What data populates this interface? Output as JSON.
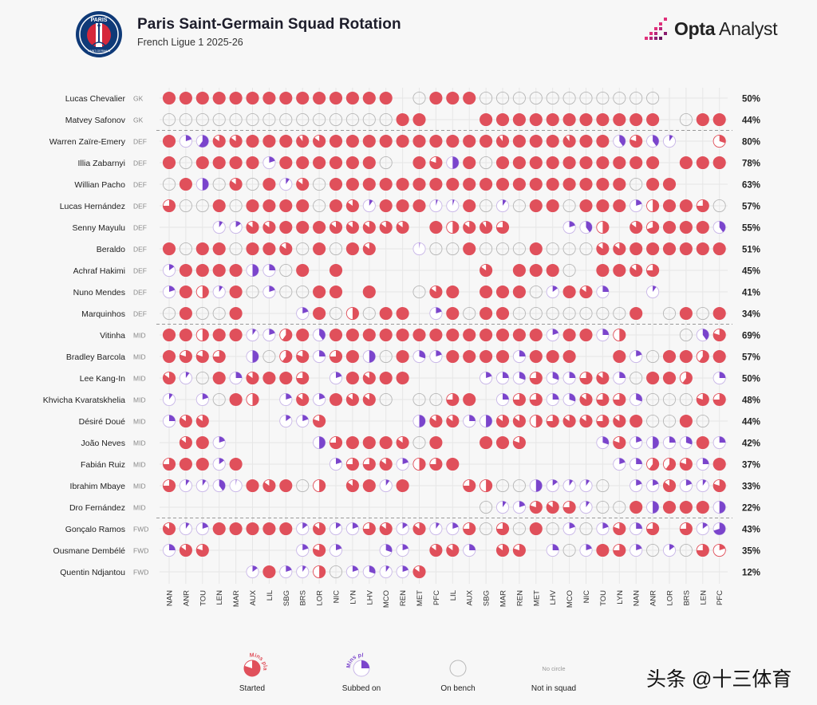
{
  "header": {
    "title": "Paris Saint-Germain Squad Rotation",
    "subtitle": "French Ligue 1 2025-26",
    "brand_bold": "Opta",
    "brand_light": " Analyst",
    "club_logo_top": "PARIS",
    "club_logo_bottom": "SAINT-GERMAIN"
  },
  "watermark": "头条 @十三体育",
  "colors": {
    "started": "#e0505b",
    "subbed": "#7b45cc",
    "bench": "#b8b8b8",
    "grid": "#e6e6e6",
    "divider": "#999999"
  },
  "chart_data": {
    "type": "table",
    "title": "Paris Saint-Germain Squad Rotation",
    "subtitle": "French Ligue 1 2025-26",
    "legend": {
      "started": "Started",
      "subbed": "Subbed on",
      "bench": "On bench",
      "not_in_squad": "Not in squad",
      "no_circle": "No circle",
      "mins_played": "Mins played"
    },
    "matches": [
      "NAN",
      "ANR",
      "TOU",
      "LEN",
      "MAR",
      "AUX",
      "LIL",
      "SBG",
      "BRS",
      "LOR",
      "NIC",
      "LYN",
      "LHV",
      "MCO",
      "REN",
      "MET",
      "PFC",
      "LIL",
      "AUX",
      "SBG",
      "MAR",
      "REN",
      "MET",
      "LHV",
      "MCO",
      "NIC",
      "TOU",
      "LYN",
      "NAN",
      "ANR",
      "LOR",
      "BRS",
      "LEN",
      "PFC"
    ],
    "value_encoding": "S = started (full), Sf = started, fraction of minutes; s = subbed on; B = on bench; N = not in squad",
    "players": [
      {
        "name": "Lucas Chevalier",
        "pos": "GK",
        "pct": "50%",
        "apps": [
          "S",
          "S",
          "S",
          "S",
          "S",
          "S",
          "S",
          "S",
          "S",
          "S",
          "S",
          "S",
          "S",
          "S",
          "N",
          "B",
          "S",
          "S",
          "S",
          "B",
          "B",
          "B",
          "B",
          "B",
          "B",
          "B",
          "B",
          "B",
          "B",
          "B",
          "N",
          "N",
          "N",
          "N"
        ]
      },
      {
        "name": "Matvey Safonov",
        "pos": "GK",
        "pct": "44%",
        "apps": [
          "B",
          "B",
          "B",
          "B",
          "B",
          "B",
          "B",
          "B",
          "B",
          "B",
          "B",
          "B",
          "B",
          "B",
          "S",
          "S",
          "N",
          "N",
          "N",
          "S",
          "S",
          "S",
          "S",
          "S",
          "S",
          "S",
          "S",
          "S",
          "S",
          "S",
          "N",
          "B",
          "S",
          "S"
        ]
      },
      {
        "name": "Warren Zaïre-Emery",
        "pos": "DEF",
        "pct": "80%",
        "apps": [
          "S",
          "s0.2",
          "s0.6",
          "S0.85",
          "S0.85",
          "S",
          "S",
          "S",
          "S0.9",
          "S0.85",
          "S",
          "S",
          "S",
          "S",
          "S",
          "S",
          "S",
          "S",
          "S",
          "S",
          "S0.9",
          "S",
          "S",
          "S",
          "S0.9",
          "S",
          "S",
          "s0.4",
          "S0.8",
          "s0.4",
          "s0.1",
          "N",
          "N",
          "S0.3"
        ]
      },
      {
        "name": "Illia Zabarnyi",
        "pos": "DEF",
        "pct": "78%",
        "apps": [
          "S",
          "B",
          "S",
          "S",
          "S",
          "S",
          "s0.2",
          "S",
          "S",
          "S",
          "S",
          "S",
          "S",
          "B",
          "N",
          "S",
          "S0.8",
          "s0.5",
          "S",
          "B",
          "S",
          "S",
          "S",
          "S",
          "S",
          "S",
          "S",
          "S",
          "S",
          "S",
          "N",
          "S",
          "S",
          "S"
        ]
      },
      {
        "name": "Willian Pacho",
        "pos": "DEF",
        "pct": "63%",
        "apps": [
          "B",
          "S",
          "s0.5",
          "B",
          "S0.85",
          "B",
          "S",
          "s0.1",
          "S0.85",
          "B",
          "S",
          "S",
          "S",
          "S",
          "S",
          "S",
          "S",
          "S",
          "S",
          "S",
          "S",
          "S",
          "S",
          "S",
          "S",
          "S",
          "S",
          "S",
          "B",
          "S",
          "S",
          "N",
          "N",
          "N"
        ]
      },
      {
        "name": "Lucas Hernández",
        "pos": "DEF",
        "pct": "57%",
        "apps": [
          "S0.75",
          "B",
          "B",
          "S",
          "B",
          "S",
          "S",
          "S",
          "S",
          "B",
          "S",
          "S0.85",
          "s0.1",
          "S",
          "S",
          "S",
          "s0.05",
          "s0.05",
          "S",
          "B",
          "s0.1",
          "B",
          "S",
          "S",
          "B",
          "S",
          "S",
          "S",
          "s0.2",
          "S0.5",
          "S",
          "S",
          "S0.75",
          "B"
        ]
      },
      {
        "name": "Senny Mayulu",
        "pos": "DEF",
        "pct": "55%",
        "apps": [
          "N",
          "N",
          "N",
          "s0.1",
          "s0.15",
          "S0.85",
          "S0.85",
          "S",
          "S",
          "S",
          "S0.85",
          "S0.85",
          "S0.85",
          "S0.85",
          "S0.85",
          "N",
          "S",
          "S0.5",
          "S0.85",
          "S0.9",
          "S0.75",
          "N",
          "N",
          "N",
          "s0.2",
          "s0.4",
          "S0.5",
          "N",
          "S0.85",
          "S0.7",
          "S",
          "S",
          "S",
          "s0.4"
        ]
      },
      {
        "name": "Beraldo",
        "pos": "DEF",
        "pct": "51%",
        "apps": [
          "S",
          "B",
          "S",
          "S",
          "B",
          "S",
          "S",
          "S0.85",
          "B",
          "S",
          "B",
          "S",
          "S0.85",
          "N",
          "N",
          "s0.02",
          "B",
          "B",
          "S",
          "B",
          "B",
          "B",
          "S",
          "B",
          "B",
          "B",
          "S0.85",
          "S0.85",
          "S",
          "S",
          "S",
          "S",
          "S",
          "S"
        ]
      },
      {
        "name": "Achraf Hakimi",
        "pos": "DEF",
        "pct": "45%",
        "apps": [
          "s0.15",
          "S",
          "S",
          "S",
          "S",
          "s0.5",
          "s0.25",
          "B",
          "S",
          "N",
          "S",
          "N",
          "N",
          "N",
          "N",
          "N",
          "N",
          "N",
          "N",
          "S0.85",
          "N",
          "S",
          "S",
          "S",
          "B",
          "N",
          "S",
          "S",
          "S0.85",
          "S0.75",
          "N",
          "N",
          "N",
          "N"
        ]
      },
      {
        "name": "Nuno Mendes",
        "pos": "DEF",
        "pct": "41%",
        "apps": [
          "s0.2",
          "S",
          "S0.5",
          "s0.1",
          "S",
          "B",
          "s0.2",
          "B",
          "B",
          "S",
          "S",
          "N",
          "S",
          "N",
          "N",
          "B",
          "S0.85",
          "S",
          "N",
          "S",
          "S",
          "S",
          "B",
          "s0.15",
          "S",
          "S0.85",
          "s0.25",
          "N",
          "N",
          "s0.1",
          "N",
          "N",
          "N",
          "N"
        ]
      },
      {
        "name": "Marquinhos",
        "pos": "DEF",
        "pct": "34%",
        "apps": [
          "B",
          "S",
          "B",
          "B",
          "S",
          "N",
          "N",
          "N",
          "s0.2",
          "S",
          "B",
          "S0.5",
          "B",
          "S",
          "S",
          "N",
          "s0.2",
          "S",
          "B",
          "S",
          "S",
          "B",
          "B",
          "B",
          "B",
          "B",
          "B",
          "B",
          "S",
          "N",
          "B",
          "S",
          "B",
          "S"
        ]
      },
      {
        "name": "Vitinha",
        "pos": "MID",
        "pct": "69%",
        "apps": [
          "S",
          "S",
          "S0.5",
          "S",
          "S",
          "s0.1",
          "s0.2",
          "S0.6",
          "S",
          "s0.4",
          "S",
          "S",
          "S",
          "S",
          "S",
          "S",
          "S",
          "S",
          "S",
          "S",
          "S",
          "S",
          "S",
          "s0.2",
          "S",
          "S",
          "s0.25",
          "S0.5",
          "N",
          "N",
          "N",
          "B",
          "s0.4",
          "S0.8"
        ]
      },
      {
        "name": "Bradley Barcola",
        "pos": "MID",
        "pct": "57%",
        "apps": [
          "S",
          "S0.8",
          "S0.8",
          "S0.75",
          "N",
          "s0.5",
          "B",
          "S0.6",
          "S0.8",
          "s0.25",
          "S0.75",
          "S",
          "s0.5",
          "B",
          "S",
          "s0.3",
          "s0.2",
          "S",
          "S",
          "S",
          "S",
          "s0.25",
          "S",
          "S",
          "S",
          "N",
          "N",
          "S",
          "s0.2",
          "B",
          "S",
          "S",
          "S0.6",
          "S"
        ]
      },
      {
        "name": "Lee Kang-In",
        "pos": "MID",
        "pct": "50%",
        "apps": [
          "S0.85",
          "s0.1",
          "B",
          "S",
          "s0.25",
          "S0.85",
          "S",
          "S",
          "S0.75",
          "N",
          "s0.2",
          "S",
          "S0.85",
          "S",
          "S",
          "N",
          "N",
          "N",
          "N",
          "s0.2",
          "s0.25",
          "s0.3",
          "S0.75",
          "s0.3",
          "s0.25",
          "S0.75",
          "S0.85",
          "s0.25",
          "B",
          "S",
          "S",
          "S0.6",
          "N",
          "s0.25"
        ]
      },
      {
        "name": "Khvicha Kvaratskhelia",
        "pos": "MID",
        "pct": "48%",
        "apps": [
          "s0.1",
          "N",
          "s0.2",
          "B",
          "S",
          "S0.5",
          "N",
          "s0.2",
          "S0.85",
          "s0.2",
          "S",
          "S0.85",
          "S0.85",
          "B",
          "N",
          "B",
          "B",
          "S0.75",
          "S",
          "N",
          "s0.25",
          "S0.75",
          "S0.75",
          "s0.25",
          "s0.3",
          "S0.85",
          "S0.75",
          "S0.75",
          "s0.3",
          "B",
          "B",
          "B",
          "S0.8",
          "S0.75"
        ]
      },
      {
        "name": "Désiré Doué",
        "pos": "MID",
        "pct": "44%",
        "apps": [
          "s0.25",
          "S0.85",
          "S0.85",
          "N",
          "N",
          "N",
          "N",
          "s0.15",
          "s0.2",
          "S0.8",
          "N",
          "N",
          "N",
          "N",
          "N",
          "s0.5",
          "S0.85",
          "S0.85",
          "s0.25",
          "s0.5",
          "S0.85",
          "S0.85",
          "S0.5",
          "S0.75",
          "S0.85",
          "S0.85",
          "S0.75",
          "S0.85",
          "S",
          "B",
          "B",
          "S",
          "B",
          "N"
        ]
      },
      {
        "name": "João Neves",
        "pos": "MID",
        "pct": "42%",
        "apps": [
          "N",
          "S0.85",
          "S",
          "s0.2",
          "N",
          "N",
          "N",
          "N",
          "N",
          "s0.5",
          "S0.75",
          "S",
          "S",
          "S",
          "S0.85",
          "B",
          "S",
          "N",
          "N",
          "S",
          "S",
          "S0.8",
          "N",
          "N",
          "N",
          "N",
          "s0.3",
          "S0.8",
          "s0.2",
          "s0.5",
          "s0.25",
          "s0.3",
          "S",
          "s0.25"
        ]
      },
      {
        "name": "Fabián Ruiz",
        "pos": "MID",
        "pct": "37%",
        "apps": [
          "S0.75",
          "S",
          "S",
          "s0.15",
          "S",
          "N",
          "N",
          "N",
          "N",
          "N",
          "s0.2",
          "S0.75",
          "S0.75",
          "S0.85",
          "s0.2",
          "S0.5",
          "S0.75",
          "S",
          "N",
          "N",
          "N",
          "N",
          "N",
          "N",
          "N",
          "N",
          "N",
          "s0.2",
          "s0.25",
          "S0.6",
          "S0.6",
          "S0.8",
          "s0.25",
          "S"
        ]
      },
      {
        "name": "Ibrahim Mbaye",
        "pos": "MID",
        "pct": "33%",
        "apps": [
          "S0.75",
          "s0.1",
          "s0.1",
          "s0.4",
          "s0.02",
          "S",
          "S0.85",
          "S",
          "B",
          "S0.5",
          "N",
          "S0.85",
          "S",
          "s0.1",
          "S",
          "N",
          "N",
          "N",
          "S0.75",
          "S0.5",
          "B",
          "B",
          "s0.5",
          "s0.15",
          "s0.1",
          "s0.1",
          "B",
          "N",
          "s0.2",
          "s0.2",
          "S0.85",
          "s0.2",
          "s0.1",
          "S0.8"
        ]
      },
      {
        "name": "Dro Fernández",
        "pos": "MID",
        "pct": "22%",
        "apps": [
          "N",
          "N",
          "N",
          "N",
          "N",
          "N",
          "N",
          "N",
          "N",
          "N",
          "N",
          "N",
          "N",
          "N",
          "N",
          "N",
          "N",
          "N",
          "N",
          "B",
          "s0.1",
          "s0.2",
          "S0.8",
          "S0.85",
          "S0.75",
          "s0.1",
          "B",
          "B",
          "S",
          "s0.5",
          "S",
          "S",
          "S",
          "s0.5"
        ]
      },
      {
        "name": "Gonçalo Ramos",
        "pos": "FWD",
        "pct": "43%",
        "apps": [
          "S0.85",
          "s0.1",
          "s0.2",
          "S",
          "S",
          "S",
          "S",
          "S",
          "s0.15",
          "S0.85",
          "s0.15",
          "s0.2",
          "S0.75",
          "S0.85",
          "s0.15",
          "S0.85",
          "s0.1",
          "s0.2",
          "S0.75",
          "B",
          "S0.75",
          "B",
          "S",
          "B",
          "s0.2",
          "B",
          "s0.2",
          "S0.8",
          "s0.25",
          "S0.75",
          "N",
          "S0.75",
          "s0.15",
          "s0.7"
        ]
      },
      {
        "name": "Ousmane Dembélé",
        "pos": "FWD",
        "pct": "35%",
        "apps": [
          "s0.25",
          "S0.85",
          "S0.8",
          "N",
          "N",
          "N",
          "N",
          "N",
          "s0.2",
          "S0.8",
          "s0.2",
          "N",
          "N",
          "s0.3",
          "s0.2",
          "N",
          "S0.85",
          "S0.85",
          "s0.25",
          "N",
          "S0.85",
          "S0.8",
          "N",
          "s0.25",
          "B",
          "s0.2",
          "S",
          "S0.75",
          "s0.2",
          "B",
          "s0.15",
          "B",
          "S0.75",
          "S0.2"
        ]
      },
      {
        "name": "Quentin Ndjantou",
        "pos": "FWD",
        "pct": "12%",
        "apps": [
          "N",
          "N",
          "N",
          "N",
          "N",
          "s0.15",
          "S",
          "s0.2",
          "s0.1",
          "S0.5",
          "B",
          "s0.2",
          "s0.3",
          "s0.1",
          "s0.2",
          "S0.85",
          "N",
          "N",
          "N",
          "N",
          "N",
          "N",
          "N",
          "N",
          "N",
          "N",
          "N",
          "N",
          "N",
          "N",
          "N",
          "N",
          "N",
          "N"
        ]
      }
    ]
  }
}
